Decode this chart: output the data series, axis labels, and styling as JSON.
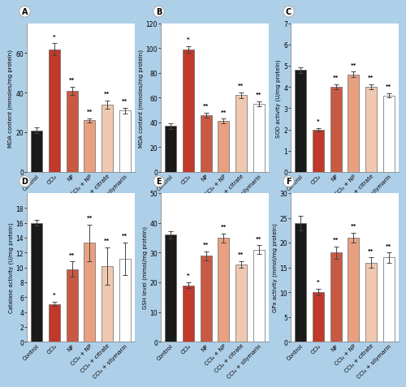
{
  "background_color": "#aecfe8",
  "panel_bg": "#ffffff",
  "categories": [
    "Control",
    "CCl₄",
    "NP",
    "CCl₄ + NP",
    "CCl₄ + citrate",
    "CCl₄ + silymarin"
  ],
  "bar_colors": [
    "#1a1a1a",
    "#c0392b",
    "#c85a44",
    "#e8a080",
    "#f0c8b0",
    "#ffffff"
  ],
  "bar_edge_color": "#666666",
  "panels": [
    {
      "label": "A",
      "ylabel": "MDA content (mmoles/mg protein)",
      "ylim": [
        0,
        75
      ],
      "yticks": [
        0,
        20,
        40,
        60
      ],
      "values": [
        21,
        62,
        41,
        26,
        34,
        31
      ],
      "errors": [
        1.5,
        3.0,
        2.0,
        1.2,
        2.0,
        1.5
      ],
      "stars": [
        "",
        "*",
        "**",
        "**",
        "**",
        "**"
      ]
    },
    {
      "label": "B",
      "ylabel": "MDA content (mmoles/mg protein)",
      "ylim": [
        0,
        120
      ],
      "yticks": [
        0,
        20,
        40,
        60,
        80,
        100,
        120
      ],
      "values": [
        37,
        99,
        46,
        41,
        62,
        55
      ],
      "errors": [
        2.0,
        2.5,
        2.0,
        2.0,
        2.5,
        2.0
      ],
      "stars": [
        "",
        "*",
        "**",
        "**",
        "**",
        "**"
      ]
    },
    {
      "label": "C",
      "ylabel": "SOD activity (U/mg protein)",
      "ylim": [
        0,
        7
      ],
      "yticks": [
        0,
        1,
        2,
        3,
        4,
        5,
        6,
        7
      ],
      "values": [
        4.8,
        2.0,
        4.0,
        4.6,
        4.0,
        3.6
      ],
      "errors": [
        0.12,
        0.08,
        0.12,
        0.12,
        0.12,
        0.1
      ],
      "stars": [
        "",
        "*",
        "**",
        "**",
        "**",
        "**"
      ]
    },
    {
      "label": "D",
      "ylabel": "Catalase activity (U/mg protein)",
      "ylim": [
        0,
        20
      ],
      "yticks": [
        0,
        2,
        4,
        6,
        8,
        10,
        12,
        14,
        16,
        18
      ],
      "values": [
        16.0,
        5.1,
        9.8,
        13.3,
        10.2,
        11.2
      ],
      "errors": [
        0.4,
        0.3,
        1.0,
        2.5,
        2.5,
        2.2
      ],
      "stars": [
        "",
        "*",
        "**",
        "**",
        "**",
        "**"
      ]
    },
    {
      "label": "E",
      "ylabel": "GSH level (mmol/mg protein)",
      "ylim": [
        0,
        50
      ],
      "yticks": [
        0,
        10,
        20,
        30,
        40,
        50
      ],
      "values": [
        36,
        19,
        29,
        35,
        26,
        31
      ],
      "errors": [
        1.2,
        1.0,
        1.5,
        1.5,
        1.2,
        1.5
      ],
      "stars": [
        "",
        "*",
        "**",
        "**",
        "**",
        "**"
      ]
    },
    {
      "label": "F",
      "ylabel": "GPx activity (mmol/mg protein)",
      "ylim": [
        0,
        30
      ],
      "yticks": [
        0,
        5,
        10,
        15,
        20,
        25,
        30
      ],
      "values": [
        24,
        10,
        18,
        21,
        16,
        17
      ],
      "errors": [
        1.5,
        0.7,
        1.2,
        1.0,
        1.0,
        1.0
      ],
      "stars": [
        "",
        "*",
        "**",
        "**",
        "**",
        "**"
      ]
    }
  ]
}
